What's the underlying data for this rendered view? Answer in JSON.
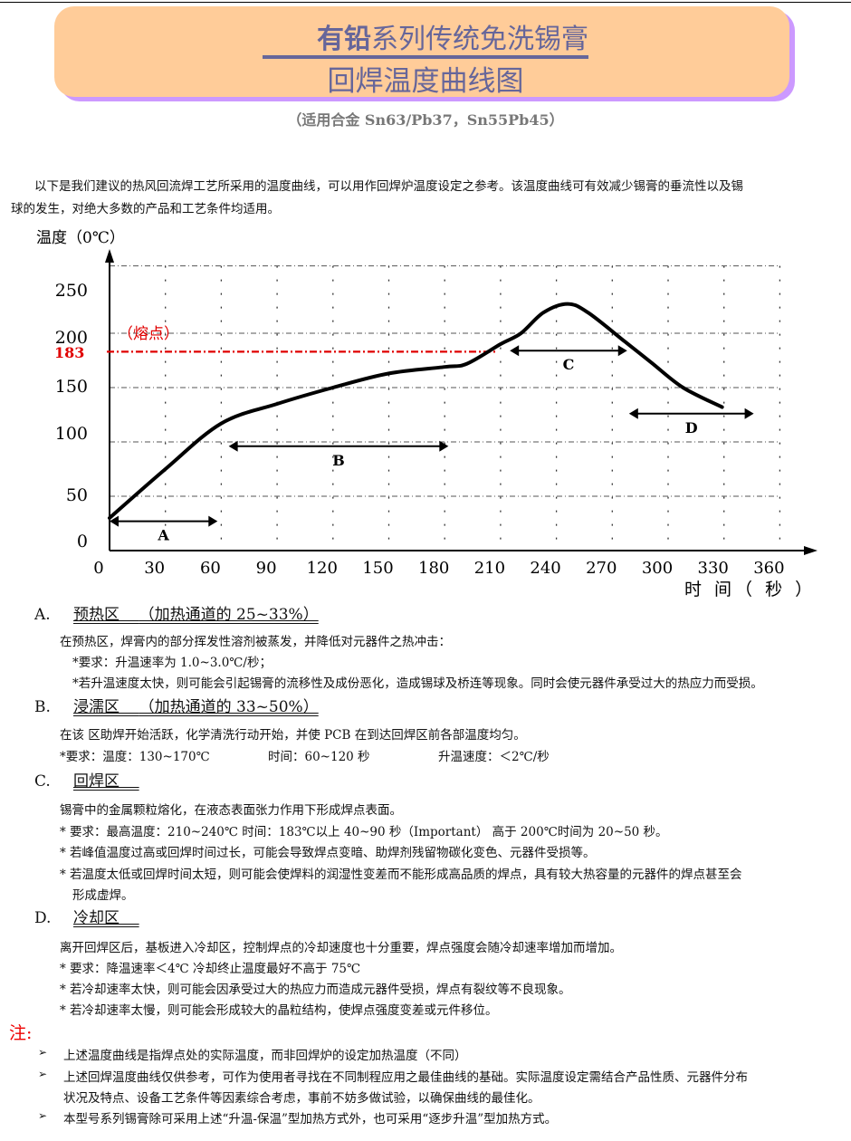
{
  "header": {
    "title_bold": "有铅",
    "title_rest": "系列传统免洗锡膏",
    "title_line2": "回焊温度曲线图",
    "subtitle": "（适用合金 Sn63/Pb37，Sn55Pb45）",
    "colors": {
      "banner": "#ffcc99",
      "shadow": "#cc99ff",
      "title": "#66669a"
    }
  },
  "intro": [
    "以下是我们建议的热风回流焊工艺所采用的温度曲线，可以用作回焊炉温度设定之参考。该温度曲线可有效减少锡膏的垂流性以及锡",
    "球的发生，对绝大多数的产品和工艺条件均适用。"
  ],
  "chart_data": {
    "type": "line",
    "ylabel": "温度（0℃）",
    "xlabel": "时 间（ 秒 ）",
    "x_ticks": [
      0,
      30,
      60,
      90,
      120,
      150,
      180,
      210,
      240,
      270,
      300,
      330,
      360
    ],
    "y_ticks": [
      0,
      50,
      100,
      150,
      200,
      250
    ],
    "xlim": [
      0,
      360
    ],
    "ylim": [
      0,
      250
    ],
    "grid": true,
    "melting_point": {
      "value": 183,
      "label": "（熔点）",
      "color": "#e00000"
    },
    "curve": {
      "x": [
        0,
        30,
        60,
        90,
        120,
        150,
        180,
        192,
        210,
        221,
        233,
        246,
        257,
        277,
        291,
        308,
        329
      ],
      "y": [
        30,
        75,
        117,
        135,
        150,
        163,
        169,
        172,
        190,
        200,
        219,
        227,
        219,
        192,
        173,
        150,
        132
      ]
    },
    "zones": [
      {
        "label": "A",
        "from": 0,
        "to": 58,
        "level": 27
      },
      {
        "label": "B",
        "from": 64,
        "to": 182,
        "level": 96
      },
      {
        "label": "C",
        "from": 215,
        "to": 278,
        "level": 184
      },
      {
        "label": "D",
        "from": 279,
        "to": 346,
        "level": 126
      }
    ]
  },
  "sections": [
    {
      "letter": "A.",
      "title": "预热区",
      "title_extra": "（加热通道的 25~33%）",
      "lines": [
        "在预热区，焊膏内的部分挥发性溶剂被蒸发，并降低对元器件之热冲击：",
        "*要求：升温速率为 1.0~3.0℃/秒；",
        "*若升温速度太快，则可能会引起锡膏的流移性及成份恶化，造成锡球及桥连等现象。同时会使元器件承受过大的热应力而受损。"
      ]
    },
    {
      "letter": "B.",
      "title": "浸濡区",
      "title_extra": "（加热通道的 33~50%）",
      "lines": [
        "在该 区助焊开始活跃，化学清洗行动开始，并使 PCB 在到达回焊区前各部温度均匀。"
      ],
      "req": [
        "*要求：温度：130~170℃",
        "时间：60~120 秒",
        "升温速度：＜2℃/秒"
      ]
    },
    {
      "letter": "C.",
      "title": "回焊区",
      "lines": [
        "锡膏中的金属颗粒熔化，在液态表面张力作用下形成焊点表面。",
        "*  要求：最高温度：210~240℃     时间：183℃以上 40~90 秒（Important）      高于 200℃时间为 20~50 秒。",
        "*  若峰值温度过高或回焊时间过长，可能会导致焊点变暗、助焊剂残留物碳化变色、元器件受损等。",
        "*  若温度太低或回焊时间太短，则可能会使焊料的润湿性变差而不能形成高品质的焊点，具有较大热容量的元器件的焊点甚至会",
        "形成虚焊。"
      ]
    },
    {
      "letter": "D.",
      "title": "冷却区",
      "lines": [
        "离开回焊区后，基板进入冷却区，控制焊点的冷却速度也十分重要，焊点强度会随冷却速率增加而增加。",
        "*  要求：降温速率＜4℃        冷却终止温度最好不高于 75℃",
        "*  若冷却速率太快，则可能会因承受过大的热应力而造成元器件受损，焊点有裂纹等不良现象。",
        "*  若冷却速率太慢，则可能会形成较大的晶粒结构，使焊点强度变差或元件移位。"
      ]
    }
  ],
  "notes": {
    "label": "注:",
    "bullet_icon": "arrowhead-bullet",
    "items": [
      [
        "上述温度曲线是指焊点处的实际温度，而非回焊炉的设定加热温度（不同）"
      ],
      [
        "上述回焊温度曲线仅供参考，可作为使用者寻找在不同制程应用之最佳曲线的基础。实际温度设定需结合产品性质、元器件分布",
        "状况及特点、设备工艺条件等因素综合考虑，事前不妨多做试验，以确保曲线的最佳化。"
      ],
      [
        "本型号系列锡膏除可采用上述“升温-保温”型加热方式外，也可采用“逐步升温”型加热方式。"
      ]
    ]
  }
}
